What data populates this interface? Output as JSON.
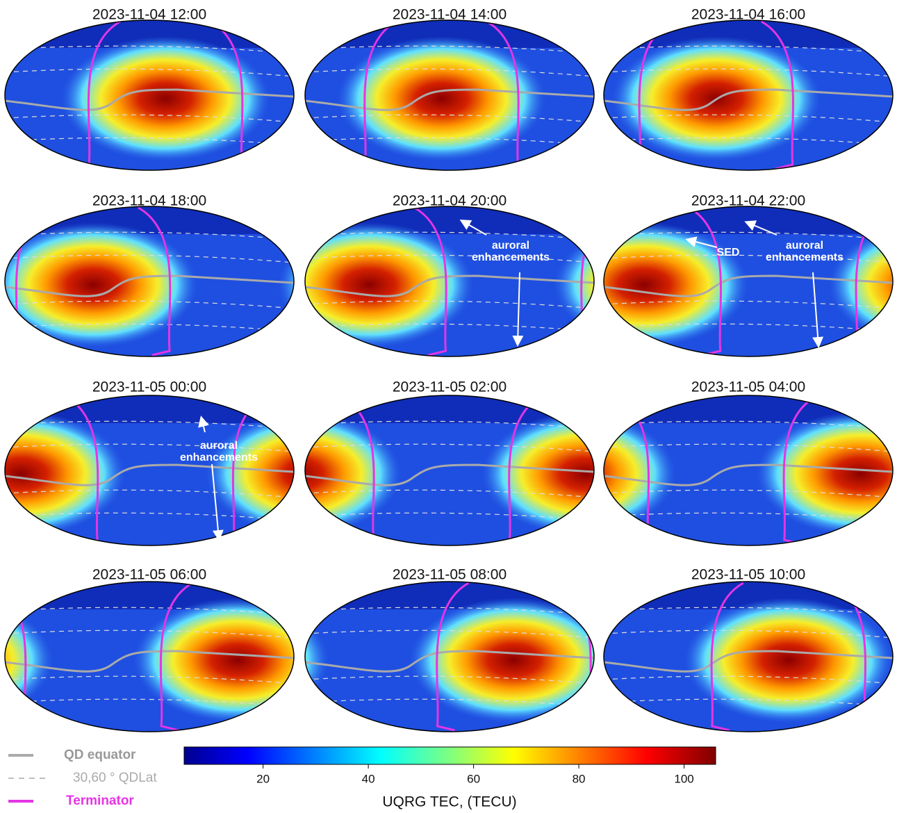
{
  "panels": [
    {
      "title": "2023-11-04 12:00"
    },
    {
      "title": "2023-11-04 14:00"
    },
    {
      "title": "2023-11-04 16:00"
    },
    {
      "title": "2023-11-04 18:00"
    },
    {
      "title": "2023-11-04 20:00",
      "annotations": [
        {
          "lines": [
            "auroral",
            "enhancements"
          ]
        }
      ]
    },
    {
      "title": "2023-11-04 22:00",
      "annotations": [
        {
          "lines": [
            "SED"
          ]
        },
        {
          "lines": [
            "auroral",
            "enhancements"
          ]
        }
      ]
    },
    {
      "title": "2023-11-05 00:00",
      "annotations": [
        {
          "lines": [
            "auroral",
            "enhancements"
          ]
        }
      ]
    },
    {
      "title": "2023-11-05 02:00"
    },
    {
      "title": "2023-11-05 04:00"
    },
    {
      "title": "2023-11-05 06:00"
    },
    {
      "title": "2023-11-05 08:00"
    },
    {
      "title": "2023-11-05 10:00"
    }
  ],
  "legend": {
    "items": [
      "QD equator",
      "30,60 ° QDLat",
      "Terminator"
    ]
  },
  "colorbar": {
    "label": "UQRG TEC, (TECU)",
    "lim": [
      5,
      106
    ],
    "ticks": [
      20,
      40,
      60,
      80,
      100
    ]
  }
}
